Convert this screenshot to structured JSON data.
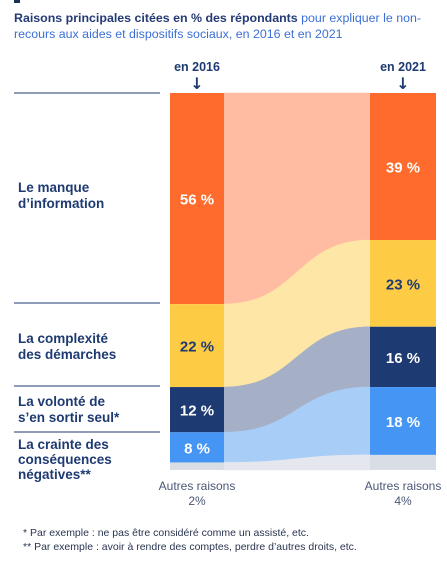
{
  "header": {
    "title_bold": "Raisons principales citées en % des répondants",
    "title_rest": " pour expliquer le non-recours aux aides et dispositifs sociaux, en 2016 et en 2021"
  },
  "footnotes": [
    "* Par exemple : ne pas être considéré comme un assisté, etc.",
    "** Par exemple : avoir à rendre des comptes, perdre d’autres droits, etc."
  ],
  "colors": {
    "manque": "#ff6b2c",
    "complexite": "#fecb45",
    "volonte": "#1e3a72",
    "crainte": "#4596f4",
    "autres": "#d9dde6"
  },
  "chart_data": {
    "type": "bar",
    "columns": [
      {
        "label": "en 2016",
        "arrow": "↓"
      },
      {
        "label": "en 2021",
        "arrow": "↓"
      }
    ],
    "series": [
      {
        "name": "Le manque\nd’information",
        "values": [
          56,
          39
        ],
        "labels": [
          "56 %",
          "39 %"
        ],
        "color": "#ff6b2c",
        "flow": "#ffbca2"
      },
      {
        "name": "La complexité\ndes démarches",
        "values": [
          22,
          23
        ],
        "labels": [
          "22 %",
          "23 %"
        ],
        "color": "#fecb45",
        "flow": "#fee6a6"
      },
      {
        "name": "La volonté de\ns’en sortir seul*",
        "values": [
          12,
          16
        ],
        "labels": [
          "12 %",
          "16 %"
        ],
        "color": "#1e3a72",
        "flow": "#a5b0c6"
      },
      {
        "name": "La crainte des\nconséquences\nnégatives**",
        "values": [
          8,
          18
        ],
        "labels": [
          "8 %",
          "18 %"
        ],
        "color": "#4596f4",
        "flow": "#a8cdf7"
      },
      {
        "name": "Autres raisons",
        "values": [
          2,
          4
        ],
        "labels": [
          "2%",
          "4%"
        ],
        "color": "#d9dde6",
        "flow": "#e4e7ee"
      }
    ]
  }
}
